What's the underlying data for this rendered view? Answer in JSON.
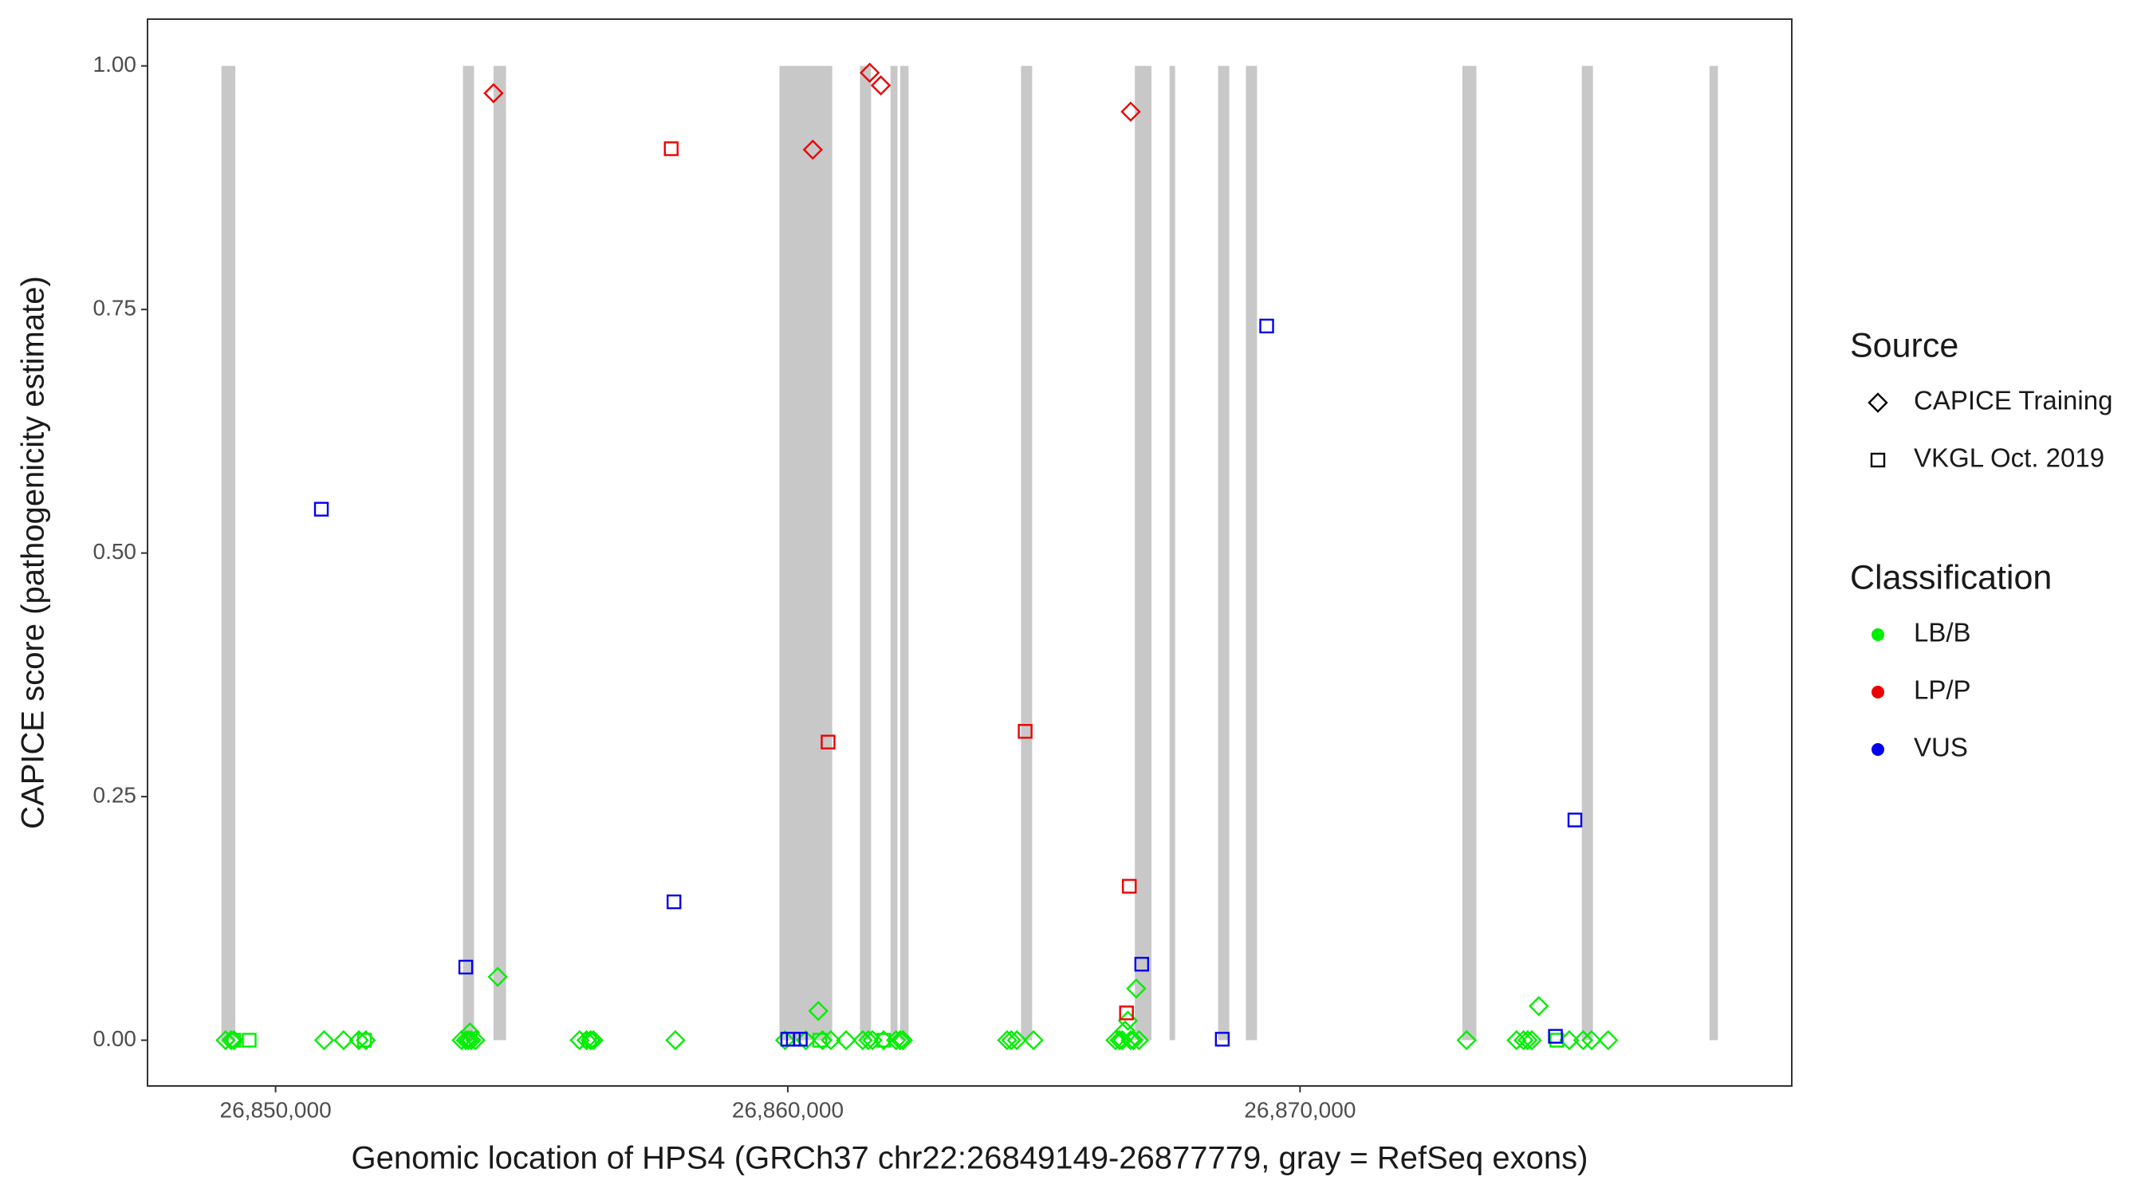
{
  "chart_data": {
    "type": "scatter",
    "x_label": "Genomic location of HPS4 (GRCh37 chr22:26849149-26877779, gray = RefSeq exons)",
    "y_label": "CAPICE score (pathogenicity estimate)",
    "xlim": [
      26847500,
      26879600
    ],
    "ylim": [
      -0.047,
      1.048
    ],
    "xticks": [
      {
        "value": 26850000,
        "label": "26,850,000"
      },
      {
        "value": 26860000,
        "label": "26,860,000"
      },
      {
        "value": 26870000,
        "label": "26,870,000"
      }
    ],
    "yticks": [
      {
        "value": 0,
        "label": "0.00"
      },
      {
        "value": 0.25,
        "label": "0.25"
      },
      {
        "value": 0.5,
        "label": "0.50"
      },
      {
        "value": 0.75,
        "label": "0.75"
      },
      {
        "value": 1,
        "label": "1.00"
      }
    ],
    "exon_color": "#c8c8c8",
    "exon_y": [
      0,
      1
    ],
    "exons": [
      {
        "start": 26848943,
        "end": 26849214
      },
      {
        "start": 26853659,
        "end": 26853875
      },
      {
        "start": 26854255,
        "end": 26854499
      },
      {
        "start": 26859837,
        "end": 26860867
      },
      {
        "start": 26861409,
        "end": 26861626
      },
      {
        "start": 26862005,
        "end": 26862141
      },
      {
        "start": 26862195,
        "end": 26862358
      },
      {
        "start": 26864553,
        "end": 26864770
      },
      {
        "start": 26866775,
        "end": 26867100
      },
      {
        "start": 26867452,
        "end": 26867561
      },
      {
        "start": 26868401,
        "end": 26868618
      },
      {
        "start": 26868943,
        "end": 26869160
      },
      {
        "start": 26873170,
        "end": 26873442
      },
      {
        "start": 26875501,
        "end": 26875718
      },
      {
        "start": 26877994,
        "end": 26878157
      }
    ],
    "source_title": "Source",
    "sources": [
      {
        "name": "CAPICE Training",
        "shape": "diamond"
      },
      {
        "name": "VKGL Oct. 2019",
        "shape": "square"
      }
    ],
    "classification_title": "Classification",
    "series": [
      {
        "name": "LB/B",
        "color": "#00ee00",
        "points": {
          "diamond": {
            "x": [
              26849024,
              26849133,
              26849187,
              26850949,
              26851328,
              26851626,
              26851762,
              26853631,
              26853713,
              26853767,
              26853794,
              26853821,
              26853902,
              26854336,
              26855935,
              26856070,
              26856152,
              26856206,
              26857805,
              26859946,
              26860352,
              26860596,
              26860677,
              26860840,
              26861138,
              26861463,
              26861572,
              26861653,
              26861870,
              26862114,
              26862195,
              26862249,
              26864282,
              26864363,
              26864471,
              26864797,
              26866396,
              26866477,
              26866531,
              26866585,
              26866639,
              26866694,
              26866748,
              26866802,
              26866856,
              26873252,
              26874227,
              26874363,
              26874444,
              26874526,
              26874661,
              26875257,
              26875528,
              26875691,
              26876016
            ],
            "values": [
              0,
              0,
              0,
              0,
              0,
              0,
              0,
              0,
              0,
              0,
              0.008,
              0,
              0,
              0.065,
              0,
              0,
              0,
              0,
              0,
              0,
              0,
              0.03,
              0,
              0,
              0,
              0,
              0,
              0,
              0,
              0,
              0,
              0,
              0,
              0,
              0,
              0,
              0,
              0,
              0,
              0.01,
              0.02,
              0,
              0,
              0.053,
              0,
              0,
              0,
              0,
              0,
              0,
              0.035,
              0,
              0,
              0,
              0
            ]
          },
          "square": {
            "x": [
              26849187,
              26849485,
              26851734,
              26856125,
              26860623,
              26861870,
              26875013
            ],
            "values": [
              0,
              0,
              0,
              0,
              0,
              0,
              0
            ]
          }
        }
      },
      {
        "name": "LP/P",
        "color": "#ee0000",
        "points": {
          "diamond": {
            "x": [
              26854255,
              26860488,
              26861599,
              26861816,
              26866694
            ],
            "values": [
              0.972,
              0.914,
              0.993,
              0.98,
              0.953
            ]
          },
          "square": {
            "x": [
              26857724,
              26860786,
              26864634,
              26866667,
              26866612
            ],
            "values": [
              0.915,
              0.306,
              0.317,
              0.158,
              0.028
            ]
          }
        }
      },
      {
        "name": "VUS",
        "color": "#0000ee",
        "points": {
          "diamond": {
            "x": [],
            "values": []
          },
          "square": {
            "x": [
              26850894,
              26853713,
              26857778,
              26860000,
              26860108,
              26860244,
              26866910,
              26868482,
              26869349,
              26874986,
              26875366
            ],
            "values": [
              0.545,
              0.075,
              0.142,
              0.001,
              0.001,
              0.001,
              0.078,
              0.001,
              0.733,
              0.004,
              0.226
            ]
          }
        }
      }
    ]
  }
}
